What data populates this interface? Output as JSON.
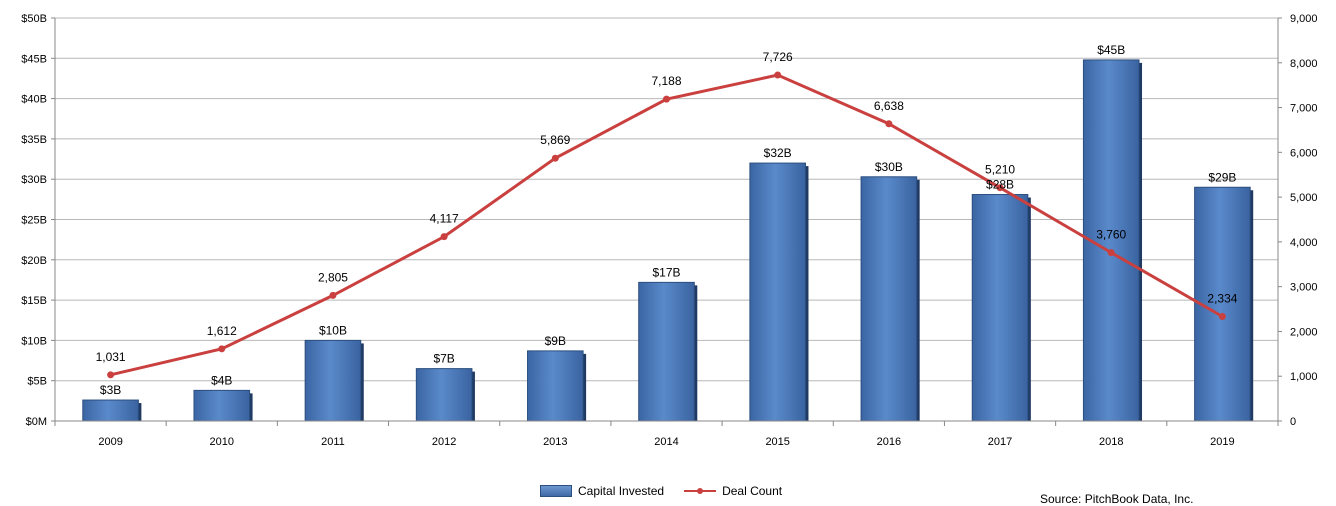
{
  "chart_data": {
    "type": "bar",
    "categories": [
      "2009",
      "2010",
      "2011",
      "2012",
      "2013",
      "2014",
      "2015",
      "2016",
      "2017",
      "2018",
      "2019"
    ],
    "series": [
      {
        "name": "Capital Invested",
        "type": "bar",
        "axis": "left",
        "values": [
          2.6,
          3.8,
          10.0,
          6.5,
          8.7,
          17.2,
          32.0,
          30.3,
          28.1,
          44.8,
          29.0
        ],
        "labels": [
          "$3B",
          "$4B",
          "$10B",
          "$7B",
          "$9B",
          "$17B",
          "$32B",
          "$30B",
          "$28B",
          "$45B",
          "$29B"
        ],
        "color": "#4a7dbf"
      },
      {
        "name": "Deal Count",
        "type": "line",
        "axis": "right",
        "values": [
          1031,
          1612,
          2805,
          4117,
          5869,
          7188,
          7726,
          6638,
          5210,
          3760,
          2334
        ],
        "labels": [
          "1,031",
          "1,612",
          "2,805",
          "4,117",
          "5,869",
          "7,188",
          "7,726",
          "6,638",
          "5,210",
          "3,760",
          "2,334"
        ],
        "color": "#c9403f"
      }
    ],
    "y_left": {
      "range": [
        0,
        50
      ],
      "ticks": [
        0,
        5,
        10,
        15,
        20,
        25,
        30,
        35,
        40,
        45,
        50
      ],
      "tick_labels": [
        "$0M",
        "$5B",
        "$10B",
        "$15B",
        "$20B",
        "$25B",
        "$30B",
        "$35B",
        "$40B",
        "$45B",
        "$50B"
      ]
    },
    "y_right": {
      "range": [
        0,
        9000
      ],
      "ticks": [
        0,
        1000,
        2000,
        3000,
        4000,
        5000,
        6000,
        7000,
        8000,
        9000
      ],
      "tick_labels": [
        "0",
        "1,000",
        "2,000",
        "3,000",
        "4,000",
        "5,000",
        "6,000",
        "7,000",
        "8,000",
        "9,000"
      ]
    },
    "grid": true,
    "legend_position": "bottom"
  },
  "legend": {
    "bar_label": "Capital Invested",
    "line_label": "Deal Count"
  },
  "source_text": "Source: PitchBook Data, Inc."
}
